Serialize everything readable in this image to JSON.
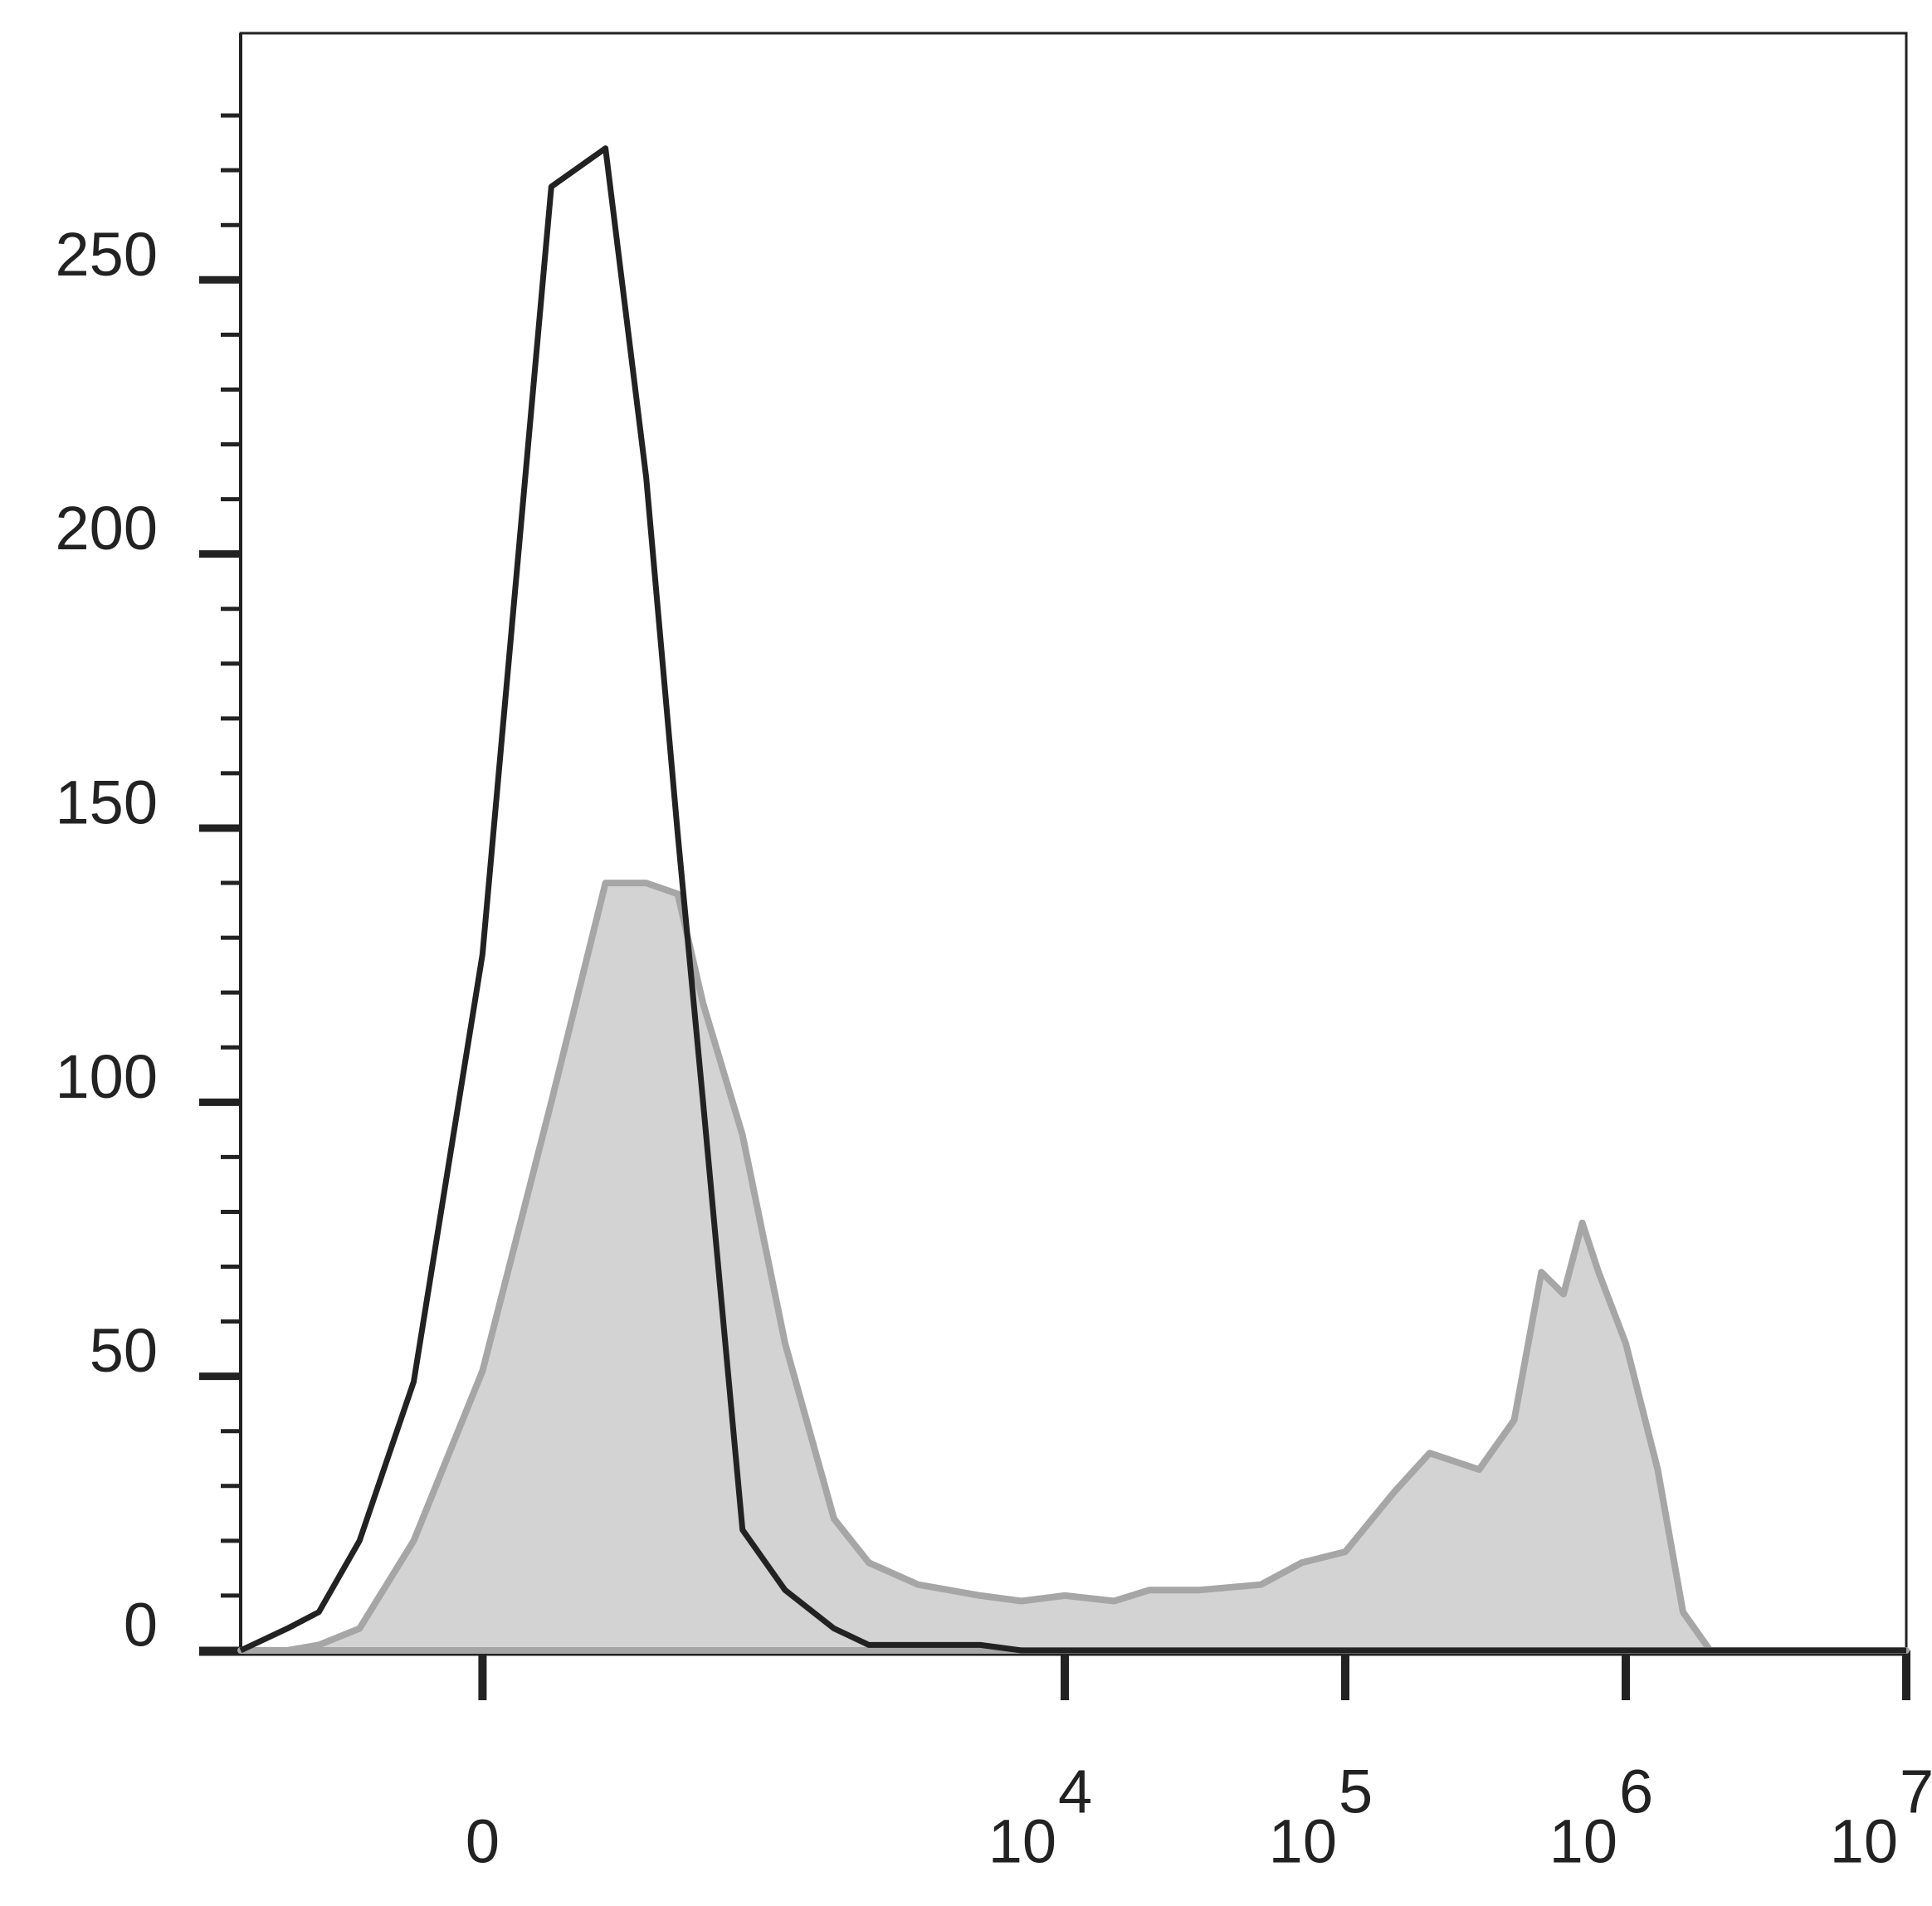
{
  "chart_data": {
    "type": "histogram-overlay",
    "xscale": "biexponential",
    "x": [
      -600,
      -400,
      -300,
      -200,
      -100,
      0,
      100,
      200,
      300,
      400,
      500,
      700,
      1000,
      1500,
      2000,
      3000,
      5000,
      7000,
      10000,
      15000,
      20000,
      30000,
      50000,
      70000,
      100000,
      150000,
      200000,
      300000,
      400000,
      500000,
      600000,
      700000,
      800000,
      1000000,
      1300000,
      1600000,
      2000000,
      3000000,
      10000000
    ],
    "series": [
      {
        "style": "area",
        "color": "#d3d3d3",
        "edge": "#a6a6a6",
        "values": [
          0,
          0,
          1,
          4,
          20,
          51,
          100,
          140,
          140,
          138,
          118,
          94,
          56,
          24,
          16,
          12,
          10,
          9,
          10,
          9,
          11,
          11,
          12,
          16,
          18,
          29,
          36,
          33,
          42,
          69,
          65,
          78,
          69,
          56,
          33,
          7,
          0,
          0,
          0
        ]
      },
      {
        "style": "line",
        "color": "#222222",
        "values": [
          0,
          4,
          7,
          20,
          49,
          127,
          267,
          274,
          214,
          149,
          100,
          22,
          11,
          4,
          1,
          1,
          1,
          0,
          0,
          0,
          0,
          0,
          0,
          0,
          0,
          0,
          0,
          0,
          0,
          0,
          0,
          0,
          0,
          0,
          0,
          0,
          0,
          0,
          0
        ]
      }
    ],
    "xlim": [
      -600,
      10000000
    ],
    "xticks": [
      0,
      {
        "value": 10000,
        "label": "10",
        "exponent": "4"
      },
      {
        "value": 100000,
        "label": "10",
        "exponent": "5"
      },
      {
        "value": 1000000,
        "label": "10",
        "exponent": "6"
      },
      {
        "value": 10000000,
        "label": "10",
        "exponent": "7"
      }
    ],
    "ylim": [
      0,
      295
    ],
    "yticks": [
      0,
      50,
      100,
      150,
      200,
      250
    ],
    "y_minor_ticks": [
      10,
      20,
      30,
      40,
      60,
      70,
      80,
      90,
      110,
      120,
      130,
      140,
      160,
      170,
      180,
      190,
      210,
      220,
      230,
      240,
      260,
      270,
      280
    ]
  }
}
